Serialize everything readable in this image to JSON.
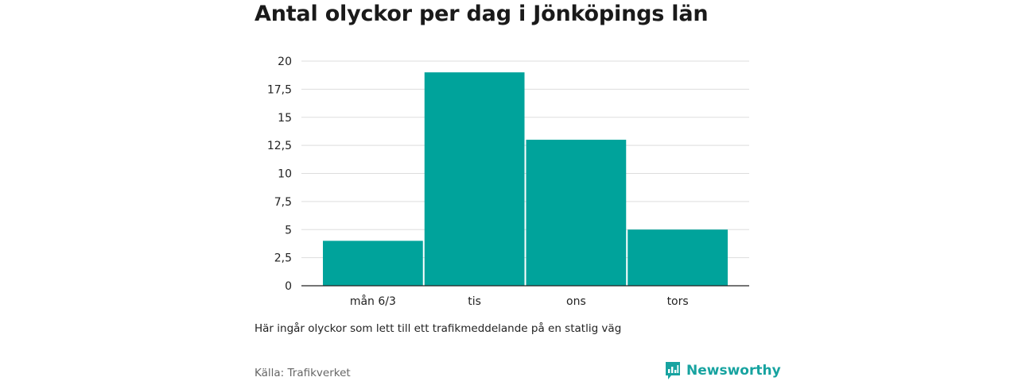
{
  "chart_data": {
    "type": "bar",
    "title": "Antal olyckor per dag i Jönköpings län",
    "categories": [
      "mån 6/3",
      "tis",
      "ons",
      "tors"
    ],
    "values": [
      4,
      19,
      13,
      5
    ],
    "ylim": [
      0,
      20
    ],
    "yticks": [
      0,
      2.5,
      5,
      7.5,
      10,
      12.5,
      15,
      17.5,
      20
    ],
    "ytick_labels": [
      "0",
      "2,5",
      "5",
      "7,5",
      "10",
      "12,5",
      "15",
      "17,5",
      "20"
    ],
    "grid": true,
    "bar_color": "#00a39b"
  },
  "note": "Här ingår olyckor som lett till ett trafikmeddelande på en statlig väg",
  "source": "Källa: Trafikverket",
  "brand": {
    "name": "Newsworthy",
    "icon": "newsworthy-logo-icon",
    "color": "#17a3a0"
  }
}
